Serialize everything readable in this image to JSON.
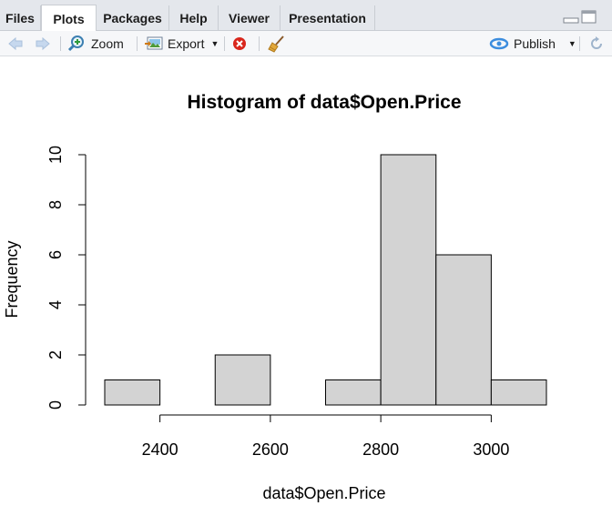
{
  "tabs": [
    {
      "label": "Files",
      "active": false
    },
    {
      "label": "Plots",
      "active": true
    },
    {
      "label": "Packages",
      "active": false
    },
    {
      "label": "Help",
      "active": false
    },
    {
      "label": "Viewer",
      "active": false
    },
    {
      "label": "Presentation",
      "active": false
    }
  ],
  "toolbar": {
    "zoom_label": "Zoom",
    "export_label": "Export",
    "publish_label": "Publish"
  },
  "icons": {
    "back": "arrow-left-icon",
    "forward": "arrow-right-icon",
    "zoom": "magnifier-plus-icon",
    "export": "image-export-icon",
    "remove": "red-x-circle-icon",
    "clear": "broom-icon",
    "publish": "publish-icon",
    "refresh": "refresh-icon"
  },
  "colors": {
    "bar_fill": "#d3d3d3",
    "accent": "#3c8dde",
    "remove_red": "#d9261c"
  },
  "chart_data": {
    "type": "bar",
    "title": "Histogram of data$Open.Price",
    "xlabel": "data$Open.Price",
    "ylabel": "Frequency",
    "bins": [
      {
        "start": 2300,
        "end": 2400,
        "count": 1
      },
      {
        "start": 2400,
        "end": 2500,
        "count": 0
      },
      {
        "start": 2500,
        "end": 2600,
        "count": 2
      },
      {
        "start": 2600,
        "end": 2700,
        "count": 0
      },
      {
        "start": 2700,
        "end": 2800,
        "count": 1
      },
      {
        "start": 2800,
        "end": 2900,
        "count": 10
      },
      {
        "start": 2900,
        "end": 3000,
        "count": 6
      },
      {
        "start": 3000,
        "end": 3100,
        "count": 1
      }
    ],
    "xticks": [
      2400,
      2600,
      2800,
      3000
    ],
    "yticks": [
      0,
      2,
      4,
      6,
      8,
      10
    ],
    "xlim": [
      2300,
      3100
    ],
    "ylim": [
      0,
      10
    ],
    "grid": false
  }
}
